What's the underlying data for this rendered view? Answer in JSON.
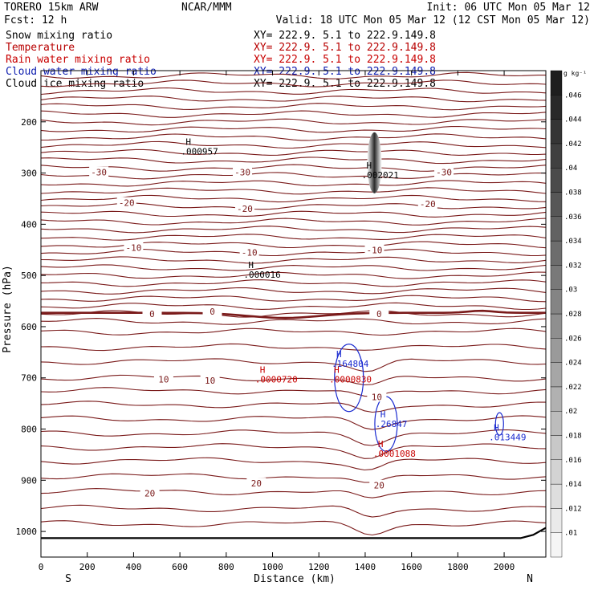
{
  "header": {
    "model": "TORERO  15km ARW",
    "org": "NCAR/MMM",
    "init": "Init: 06 UTC Mon 05 Mar 12",
    "fcst": "Fcst:   12 h",
    "valid": "Valid: 18 UTC Mon 05 Mar 12 (12 CST Mon 05 Mar 12)",
    "fields": [
      {
        "name": "Snow mixing ratio",
        "xy": "XY= 222.9.  5.1 to 222.9.149.8",
        "color": "#000000"
      },
      {
        "name": "Temperature",
        "xy": "XY= 222.9.  5.1 to 222.9.149.8",
        "color": "#b80000"
      },
      {
        "name": "Rain water mixing ratio",
        "xy": "XY= 222.9.  5.1 to 222.9.149.8",
        "color": "#c80000"
      },
      {
        "name": "Cloud water mixing ratio",
        "xy": "XY= 222.9.  5.1 to 222.9.149.8",
        "color": "#1020b0"
      },
      {
        "name": "Cloud ice mixing ratio",
        "xy": "XY= 222.9.  5.1 to 222.9.149.8",
        "color": "#000000"
      }
    ]
  },
  "colors": {
    "temperature": "#7a1a1a",
    "rain": "#c80000",
    "cloud_water": "#1a2ad0",
    "snow_ice": "#000000",
    "terrain": "#000000"
  },
  "chart_data": {
    "type": "cross-section",
    "xlabel": "Distance (km)",
    "ylabel": "Pressure (hPa)",
    "xlim": [
      0,
      2180
    ],
    "ylim": [
      1050,
      100
    ],
    "xticks": [
      0,
      200,
      400,
      600,
      800,
      1000,
      1200,
      1400,
      1600,
      1800,
      2000
    ],
    "yticks": [
      200,
      300,
      400,
      500,
      600,
      700,
      800,
      900,
      1000
    ],
    "left_end_label": "S",
    "right_end_label": "N",
    "colorbar": {
      "unit": "g kg⁻¹",
      "ticks": [
        ".01",
        ".012",
        ".014",
        ".016",
        ".018",
        ".02",
        ".022",
        ".024",
        ".026",
        ".028",
        ".03",
        ".032",
        ".034",
        ".036",
        ".038",
        ".04",
        ".042",
        ".044",
        ".046"
      ]
    },
    "isotherm_labels": [
      {
        "text": "-30",
        "x": 250,
        "p": 298
      },
      {
        "text": "-30",
        "x": 870,
        "p": 298
      },
      {
        "text": "-30",
        "x": 1740,
        "p": 298
      },
      {
        "text": "-20",
        "x": 370,
        "p": 358
      },
      {
        "text": "-20",
        "x": 880,
        "p": 370
      },
      {
        "text": "-20",
        "x": 1670,
        "p": 360
      },
      {
        "text": "-10",
        "x": 400,
        "p": 446
      },
      {
        "text": "-10",
        "x": 900,
        "p": 455
      },
      {
        "text": "-10",
        "x": 1440,
        "p": 450
      },
      {
        "text": "0",
        "x": 480,
        "p": 575
      },
      {
        "text": "0",
        "x": 740,
        "p": 570
      },
      {
        "text": "0",
        "x": 1460,
        "p": 575
      },
      {
        "text": "10",
        "x": 530,
        "p": 703
      },
      {
        "text": "10",
        "x": 730,
        "p": 705
      },
      {
        "text": "10",
        "x": 1450,
        "p": 737
      },
      {
        "text": "20",
        "x": 470,
        "p": 925
      },
      {
        "text": "20",
        "x": 930,
        "p": 906
      },
      {
        "text": "20",
        "x": 1460,
        "p": 910
      }
    ],
    "maxima": [
      {
        "label": "H",
        "value": ".000957",
        "x": 660,
        "p": 245,
        "field": "snow_ice"
      },
      {
        "label": "H",
        "value": ".002021",
        "x": 1440,
        "p": 291,
        "field": "snow_ice"
      },
      {
        "label": "H",
        "value": ".000016",
        "x": 930,
        "p": 486,
        "field": "snow_ice"
      },
      {
        "label": "H",
        "value": ".164804",
        "x": 1310,
        "p": 660,
        "field": "cloud_water"
      },
      {
        "label": "H",
        "value": ".26847",
        "x": 1500,
        "p": 777,
        "field": "cloud_water"
      },
      {
        "label": "H",
        "value": ".013449",
        "x": 1990,
        "p": 803,
        "field": "cloud_water"
      },
      {
        "label": "H",
        "value": ".0000720",
        "x": 980,
        "p": 690,
        "field": "rain"
      },
      {
        "label": "H",
        "value": ".0000830",
        "x": 1300,
        "p": 690,
        "field": "rain"
      },
      {
        "label": "H",
        "value": ".0001088",
        "x": 1490,
        "p": 835,
        "field": "rain"
      }
    ]
  }
}
